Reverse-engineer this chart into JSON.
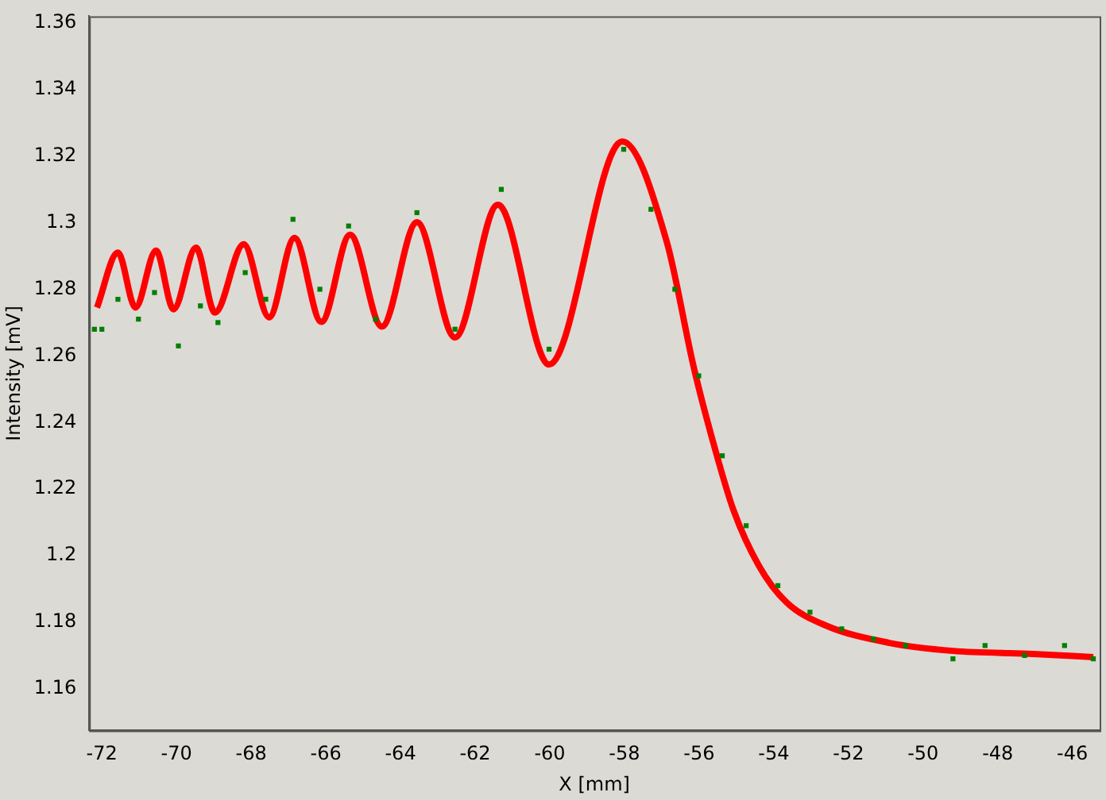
{
  "chart_data": {
    "type": "scatter",
    "xlabel": "X [mm]",
    "ylabel": "Intensity [mV]",
    "xlim": [
      -72.34,
      -45.27
    ],
    "ylim": [
      1.1475,
      1.362
    ],
    "xticks": [
      -72,
      -70,
      -68,
      -66,
      -64,
      -62,
      -60,
      -58,
      -56,
      -54,
      -52,
      -50,
      -48,
      -46
    ],
    "yticks": [
      {
        "value": 1.16,
        "label": "1.16"
      },
      {
        "value": 1.18,
        "label": "1.18"
      },
      {
        "value": 1.2,
        "label": "1.2"
      },
      {
        "value": 1.22,
        "label": "1.22"
      },
      {
        "value": 1.24,
        "label": "1.24"
      },
      {
        "value": 1.26,
        "label": "1.26"
      },
      {
        "value": 1.28,
        "label": "1.28"
      },
      {
        "value": 1.3,
        "label": "1.3"
      },
      {
        "value": 1.32,
        "label": "1.32"
      },
      {
        "value": 1.34,
        "label": "1.34"
      },
      {
        "value": 1.36,
        "label": "1.36"
      }
    ],
    "grid": false,
    "legend": false,
    "series": [
      {
        "marker": "square",
        "color": "#008000",
        "x": [
          -72.2,
          -72,
          -71.57,
          -71.02,
          -70.59,
          -69.95,
          -69.36,
          -68.89,
          -68.16,
          -67.61,
          -66.88,
          -66.16,
          -65.39,
          -64.67,
          -63.56,
          -62.54,
          -61.3,
          -60.02,
          -58.02,
          -57.29,
          -56.65,
          -56.01,
          -55.38,
          -54.74,
          -53.89,
          -53.03,
          -52.18,
          -51.33,
          -50.47,
          -49.2,
          -48.34,
          -47.28,
          -46.21,
          -45.44
        ],
        "values": [
          1.268,
          1.268,
          1.277,
          1.271,
          1.279,
          1.263,
          1.275,
          1.27,
          1.285,
          1.277,
          1.301,
          1.28,
          1.299,
          1.271,
          1.303,
          1.268,
          1.31,
          1.262,
          1.322,
          1.304,
          1.28,
          1.254,
          1.23,
          1.209,
          1.191,
          1.183,
          1.178,
          1.175,
          1.173,
          1.169,
          1.173,
          1.17,
          1.173,
          1.169
        ]
      },
      {
        "type": "line",
        "marker": "none",
        "color": "#ff0000",
        "x": [
          -72.13,
          -71.57,
          -71.1,
          -70.55,
          -70.08,
          -69.48,
          -68.97,
          -68.2,
          -67.52,
          -66.84,
          -66.12,
          -65.35,
          -64.5,
          -63.56,
          -62.54,
          -61.39,
          -60.02,
          -58.06,
          -56.87,
          -56.14,
          -55.59,
          -55.08,
          -54.4,
          -53.67,
          -52.6,
          -50.9,
          -49.2,
          -47.06,
          -45.44
        ],
        "values": [
          1.2745,
          1.291,
          1.2745,
          1.2916,
          1.274,
          1.2925,
          1.273,
          1.2935,
          1.2716,
          1.2954,
          1.2702,
          1.2964,
          1.2688,
          1.3001,
          1.2655,
          1.3054,
          1.2574,
          1.3244,
          1.2944,
          1.2564,
          1.2327,
          1.2137,
          1.197,
          1.1861,
          1.179,
          1.1738,
          1.1714,
          1.1705,
          1.1695
        ]
      }
    ]
  }
}
